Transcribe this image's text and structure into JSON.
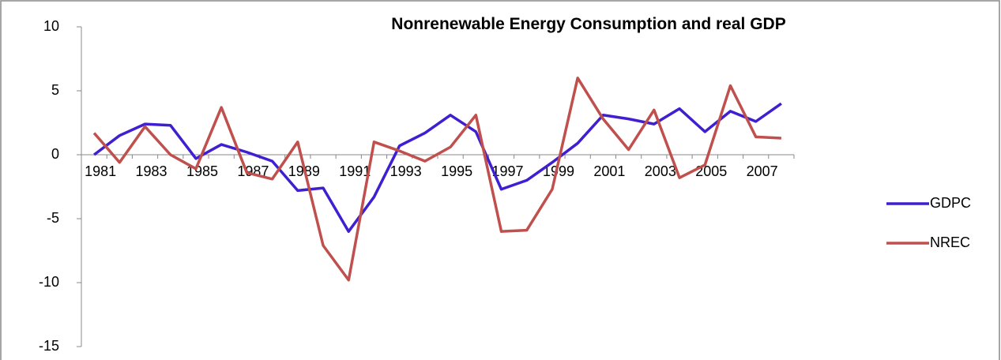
{
  "chart_data": {
    "type": "line",
    "title": "Nonrenewable Energy Consumption and real GDP",
    "categories": [
      "1981",
      null,
      "1983",
      null,
      "1985",
      null,
      "1987",
      null,
      "1989",
      null,
      "1991",
      null,
      "1993",
      null,
      "1995",
      null,
      "1997",
      null,
      "1999",
      null,
      "2001",
      null,
      "2003",
      null,
      "2005",
      null,
      "2007",
      null
    ],
    "series": [
      {
        "name": "GDPC",
        "color": "#3f1fd0",
        "values": [
          0,
          1.5,
          2.4,
          2.3,
          -0.3,
          0.8,
          0.2,
          -0.5,
          -2.8,
          -2.6,
          -6,
          -3.3,
          0.7,
          1.7,
          3.1,
          1.8,
          -2.7,
          -2,
          -0.6,
          0.9,
          3.1,
          2.8,
          2.4,
          3.6,
          1.8,
          3.4,
          2.6,
          4
        ]
      },
      {
        "name": "NREC",
        "color": "#c0504d",
        "values": [
          1.7,
          -0.6,
          2.2,
          0,
          -1.1,
          3.7,
          -1.4,
          -1.9,
          1,
          -7.1,
          -9.8,
          1,
          0.3,
          -0.5,
          0.6,
          3.1,
          -6,
          -5.9,
          -2.7,
          6,
          2.8,
          0.4,
          3.5,
          -1.8,
          -0.8,
          5.4,
          1.4,
          1.3
        ]
      }
    ],
    "ylim": [
      -15,
      10
    ],
    "yticks": [
      -15,
      -10,
      -5,
      0,
      5,
      10
    ],
    "grid": false,
    "legend": "right"
  }
}
